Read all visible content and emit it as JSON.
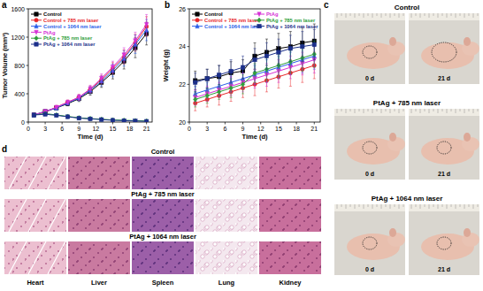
{
  "chart_data": [
    {
      "type": "line",
      "xlabel": "Time (d)",
      "ylabel": "Tumor Volume (mm³)",
      "x": [
        1,
        3,
        5,
        7,
        9,
        11,
        13,
        15,
        17,
        19,
        21
      ],
      "xlim": [
        0,
        22
      ],
      "xticks": [
        0,
        3,
        6,
        9,
        12,
        15,
        18,
        21
      ],
      "ylim": [
        0,
        1600
      ],
      "yticks": [
        0,
        400,
        800,
        1200,
        1600
      ],
      "grid": false,
      "legend": "upper left",
      "series": [
        {
          "name": "Control",
          "color": "#000000",
          "marker": "square",
          "values": [
            100,
            150,
            200,
            260,
            330,
            430,
            560,
            700,
            860,
            1050,
            1250
          ],
          "errors": [
            10,
            15,
            20,
            30,
            40,
            50,
            70,
            90,
            110,
            140,
            160
          ]
        },
        {
          "name": "Control + 785 nm laser",
          "color": "#e8262a",
          "marker": "circle",
          "values": [
            100,
            140,
            210,
            280,
            350,
            460,
            600,
            760,
            920,
            1120,
            1350
          ],
          "errors": [
            10,
            15,
            20,
            30,
            40,
            50,
            60,
            80,
            100,
            120,
            140
          ]
        },
        {
          "name": "Control + 1064 nm laser",
          "color": "#2a5ee8",
          "marker": "triangle",
          "values": [
            100,
            150,
            200,
            270,
            340,
            450,
            580,
            730,
            900,
            1100,
            1300
          ],
          "errors": [
            10,
            15,
            20,
            30,
            40,
            50,
            70,
            90,
            110,
            130,
            150
          ]
        },
        {
          "name": "PtAg",
          "color": "#d62fd6",
          "marker": "triangle-down",
          "values": [
            100,
            150,
            210,
            280,
            350,
            470,
            620,
            780,
            950,
            1150,
            1380
          ],
          "errors": [
            10,
            15,
            20,
            30,
            40,
            50,
            60,
            80,
            100,
            120,
            140
          ]
        },
        {
          "name": "PtAg + 785 nm laser",
          "color": "#2e9e3a",
          "marker": "diamond",
          "values": [
            100,
            120,
            100,
            80,
            60,
            50,
            40,
            30,
            25,
            20,
            15
          ],
          "errors": [
            10,
            15,
            15,
            12,
            10,
            10,
            8,
            8,
            6,
            5,
            5
          ]
        },
        {
          "name": "PtAg + 1064 nm laser",
          "color": "#1c2f8a",
          "marker": "square",
          "values": [
            100,
            110,
            95,
            75,
            55,
            45,
            35,
            25,
            20,
            15,
            10
          ],
          "errors": [
            10,
            12,
            12,
            10,
            10,
            8,
            8,
            6,
            5,
            5,
            4
          ]
        }
      ]
    },
    {
      "type": "line",
      "xlabel": "Time (d)",
      "ylabel": "Weight (g)",
      "x": [
        1,
        3,
        5,
        7,
        9,
        11,
        13,
        15,
        17,
        19,
        21
      ],
      "xlim": [
        0,
        22
      ],
      "xticks": [
        0,
        3,
        6,
        9,
        12,
        15,
        18,
        21
      ],
      "ylim": [
        20,
        26
      ],
      "yticks": [
        20,
        22,
        24,
        26
      ],
      "grid": false,
      "legend": "upper left",
      "series": [
        {
          "name": "Control",
          "color": "#000000",
          "marker": "square",
          "values": [
            22.2,
            22.3,
            22.4,
            22.6,
            22.7,
            23.5,
            23.7,
            23.9,
            24.0,
            24.2,
            24.3
          ],
          "errors": [
            0.5,
            0.5,
            0.6,
            0.6,
            0.6,
            0.7,
            0.7,
            0.8,
            0.8,
            0.8,
            0.9
          ]
        },
        {
          "name": "Control + 785 nm laser",
          "color": "#e8262a",
          "marker": "circle",
          "values": [
            21.0,
            21.2,
            21.4,
            21.6,
            21.8,
            22.0,
            22.2,
            22.4,
            22.6,
            22.8,
            23.0
          ],
          "errors": [
            0.4,
            0.4,
            0.5,
            0.5,
            0.5,
            0.6,
            0.6,
            0.6,
            0.7,
            0.7,
            0.7
          ]
        },
        {
          "name": "Control + 1064 nm laser",
          "color": "#2a5ee8",
          "marker": "triangle",
          "values": [
            21.5,
            21.7,
            21.9,
            22.1,
            22.3,
            22.5,
            22.7,
            22.9,
            23.1,
            23.3,
            23.5
          ],
          "errors": [
            0.4,
            0.4,
            0.5,
            0.5,
            0.5,
            0.5,
            0.6,
            0.6,
            0.6,
            0.7,
            0.7
          ]
        },
        {
          "name": "PtAg",
          "color": "#d62fd6",
          "marker": "triangle-down",
          "values": [
            21.3,
            21.5,
            21.7,
            21.9,
            22.1,
            22.3,
            22.5,
            22.7,
            22.9,
            23.1,
            23.3
          ],
          "errors": [
            0.4,
            0.4,
            0.4,
            0.5,
            0.5,
            0.5,
            0.6,
            0.6,
            0.6,
            0.6,
            0.7
          ]
        },
        {
          "name": "PtAg + 785 nm laser",
          "color": "#2e9e3a",
          "marker": "diamond",
          "values": [
            21.2,
            21.4,
            21.6,
            21.8,
            22.0,
            22.6,
            22.8,
            23.0,
            23.2,
            23.4,
            23.6
          ],
          "errors": [
            0.4,
            0.4,
            0.4,
            0.5,
            0.5,
            0.5,
            0.6,
            0.6,
            0.6,
            0.7,
            0.7
          ]
        },
        {
          "name": "PtAg + 1064 nm laser",
          "color": "#1c2f8a",
          "marker": "square",
          "values": [
            22.1,
            22.3,
            22.5,
            22.7,
            22.9,
            23.3,
            23.5,
            23.7,
            23.9,
            24.0,
            24.1
          ],
          "errors": [
            0.5,
            0.5,
            0.5,
            0.6,
            0.6,
            0.6,
            0.7,
            0.7,
            0.7,
            0.8,
            0.8
          ]
        }
      ]
    }
  ],
  "panel_labels": [
    "a",
    "b",
    "c",
    "d"
  ],
  "photos": {
    "groups": [
      {
        "label": "Control",
        "days": [
          "0 d",
          "21 d"
        ]
      },
      {
        "label": "PtAg + 785 nm laser",
        "days": [
          "0 d",
          "21 d"
        ]
      },
      {
        "label": "PtAg + 1064 nm laser",
        "days": [
          "0 d",
          "21 d"
        ]
      }
    ]
  },
  "histology": {
    "rows": [
      "Control",
      "PtAg + 785 nm laser",
      "PtAg + 1064 nm laser"
    ],
    "columns": [
      "Heart",
      "Liver",
      "Spleen",
      "Lung",
      "Kidney"
    ]
  }
}
